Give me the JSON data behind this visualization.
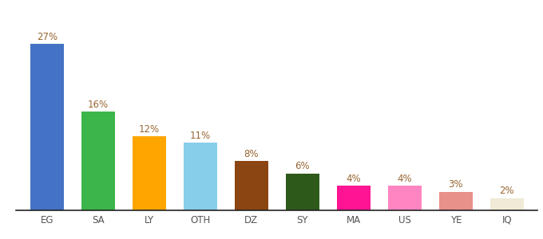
{
  "categories": [
    "EG",
    "SA",
    "LY",
    "OTH",
    "DZ",
    "SY",
    "MA",
    "US",
    "YE",
    "IQ"
  ],
  "values": [
    27,
    16,
    12,
    11,
    8,
    6,
    4,
    4,
    3,
    2
  ],
  "bar_colors": [
    "#4472c4",
    "#3cb54a",
    "#ffa500",
    "#87ceeb",
    "#8b4513",
    "#2d5a1b",
    "#ff1493",
    "#ff85c2",
    "#e8908a",
    "#f0ead6"
  ],
  "ylim": [
    0,
    31
  ],
  "background_color": "#ffffff",
  "label_color": "#996633",
  "label_fontsize": 8.5,
  "tick_fontsize": 8.5,
  "tick_color": "#555555"
}
